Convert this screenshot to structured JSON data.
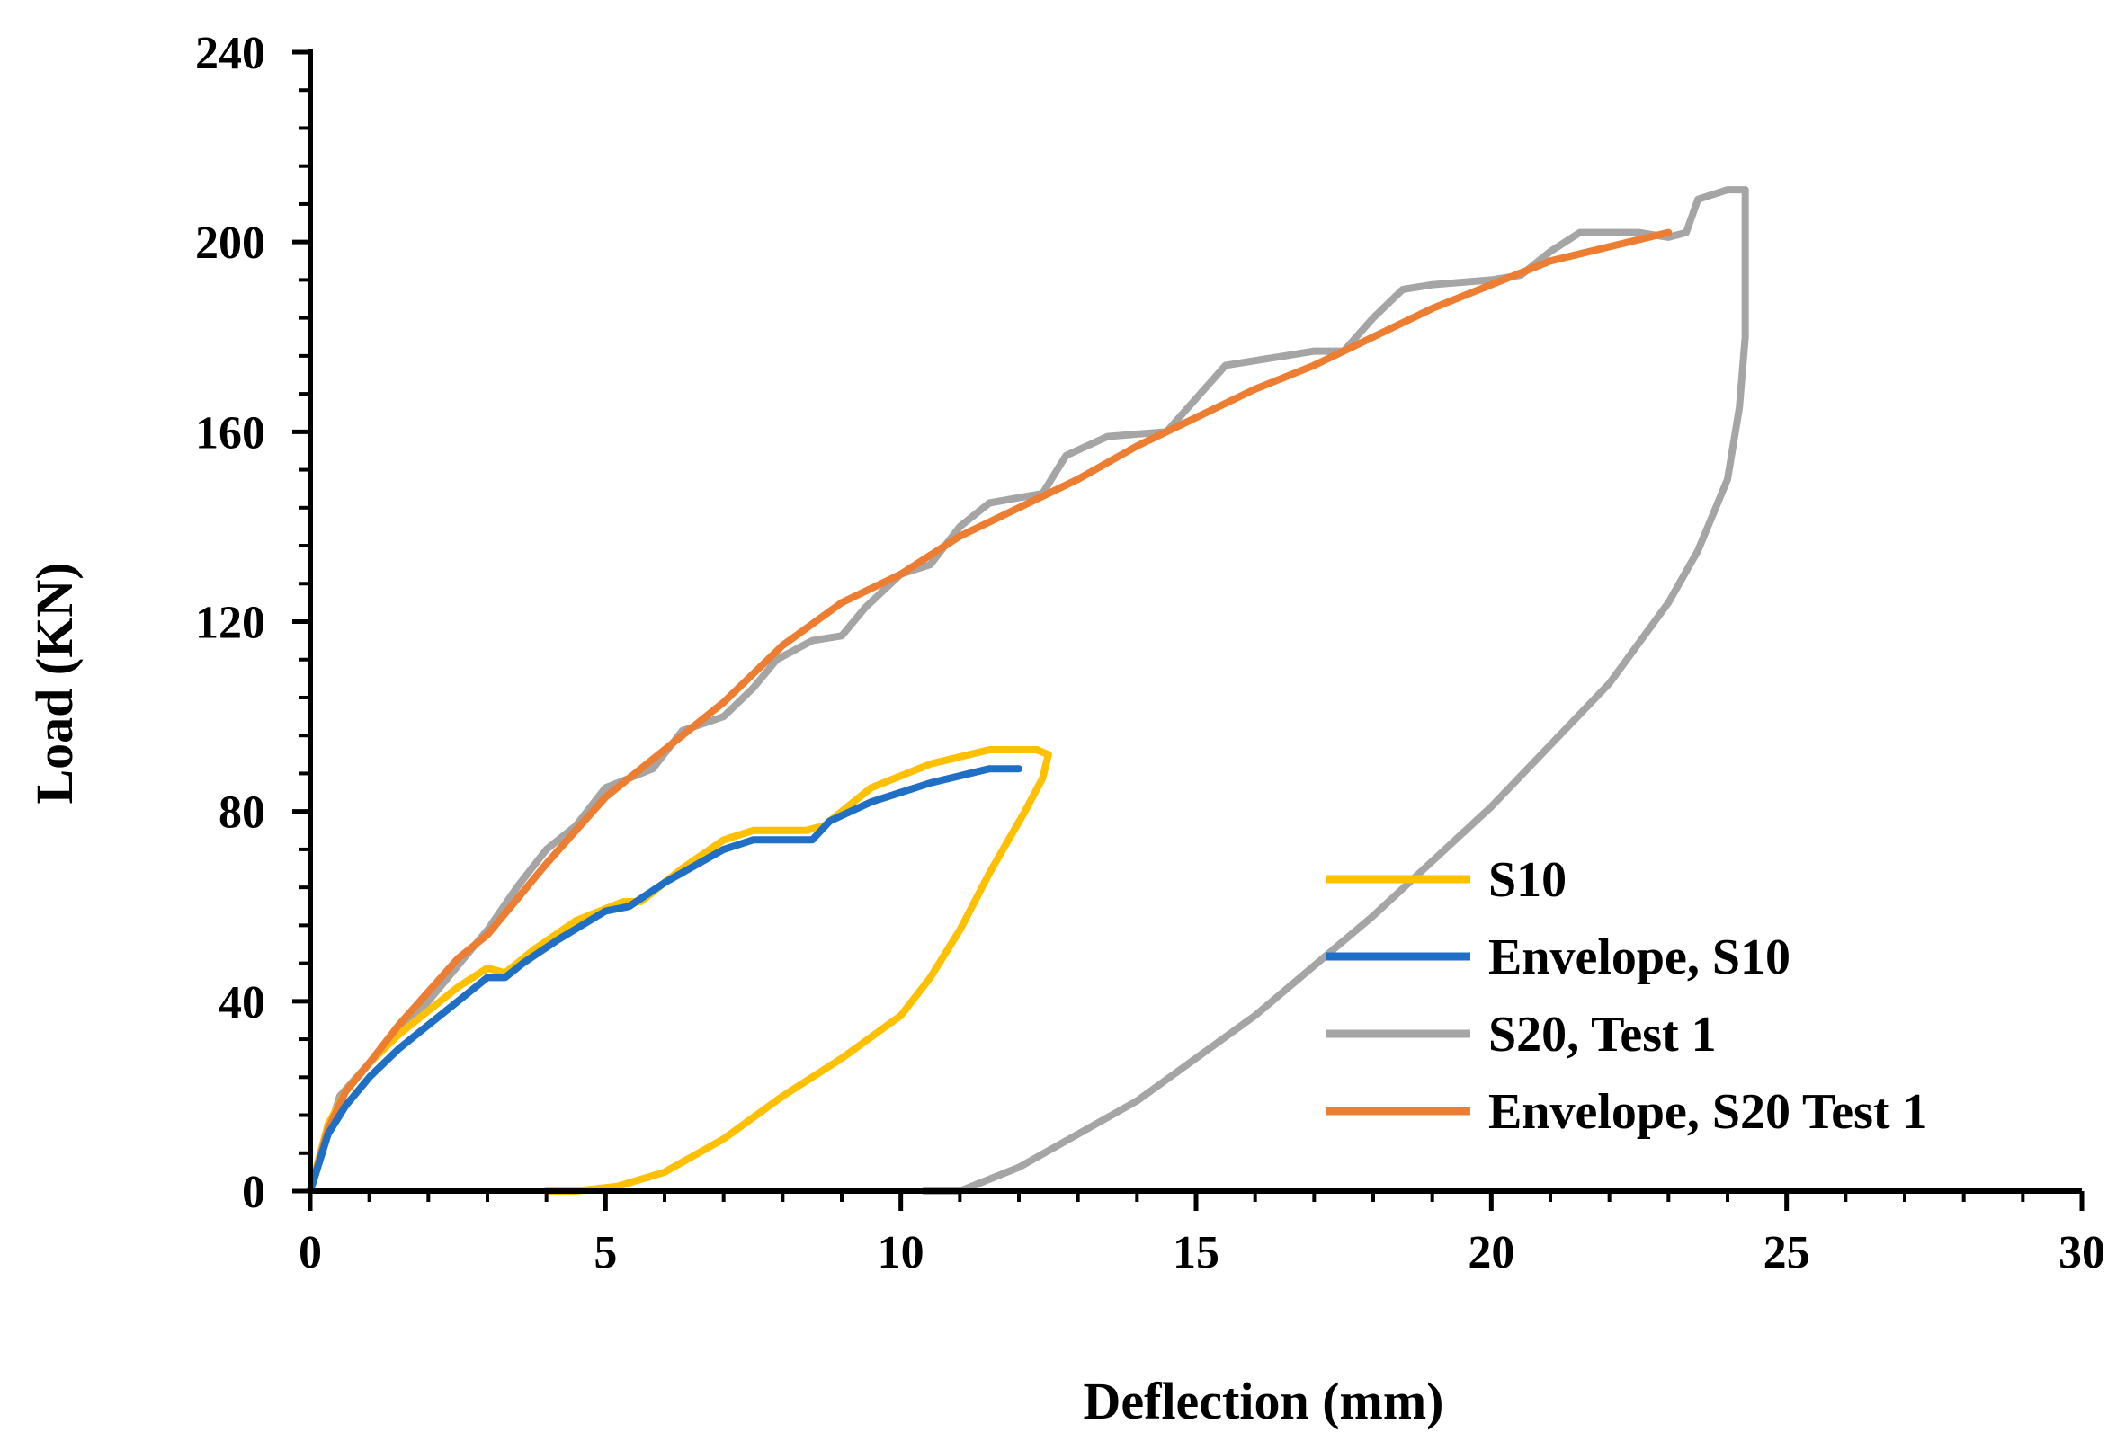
{
  "chart_data": {
    "type": "line",
    "title": "",
    "xlabel": "Deflection (mm)",
    "ylabel": "Load (KN)",
    "xlim": [
      0,
      30
    ],
    "ylim": [
      0,
      240
    ],
    "x_ticks": [
      "0",
      "5",
      "10",
      "15",
      "20",
      "25",
      "30"
    ],
    "y_ticks": [
      "0",
      "40",
      "80",
      "120",
      "160",
      "200",
      "240"
    ],
    "grid": false,
    "legend_position": "bottom-right",
    "series": [
      {
        "name": "S10",
        "color": "#FFC000",
        "points": [
          [
            0,
            0
          ],
          [
            0.3,
            14
          ],
          [
            0.6,
            21
          ],
          [
            1,
            27
          ],
          [
            1.5,
            33
          ],
          [
            2,
            38
          ],
          [
            2.5,
            43
          ],
          [
            3,
            47
          ],
          [
            3.3,
            46
          ],
          [
            3.8,
            51
          ],
          [
            4.5,
            57
          ],
          [
            5.3,
            61
          ],
          [
            5.6,
            61
          ],
          [
            6.3,
            68
          ],
          [
            7,
            74
          ],
          [
            7.5,
            76
          ],
          [
            8,
            76
          ],
          [
            8.4,
            76
          ],
          [
            8.7,
            77
          ],
          [
            9.5,
            85
          ],
          [
            10.5,
            90
          ],
          [
            11.5,
            93
          ],
          [
            12.3,
            93
          ],
          [
            12.5,
            92
          ],
          [
            12.4,
            87
          ],
          [
            12.1,
            80
          ],
          [
            11.5,
            67
          ],
          [
            11,
            55
          ],
          [
            10.5,
            45
          ],
          [
            10,
            37
          ],
          [
            9,
            28
          ],
          [
            8,
            20
          ],
          [
            7,
            11
          ],
          [
            6,
            4
          ],
          [
            5.2,
            1
          ],
          [
            4.5,
            0
          ],
          [
            4,
            0
          ]
        ]
      },
      {
        "name": "Envelope, S10",
        "color": "#1F6FC5",
        "points": [
          [
            0,
            0
          ],
          [
            0.3,
            12
          ],
          [
            0.6,
            18
          ],
          [
            1,
            24
          ],
          [
            1.5,
            30
          ],
          [
            2,
            35
          ],
          [
            2.5,
            40
          ],
          [
            3,
            45
          ],
          [
            3.3,
            45
          ],
          [
            3.6,
            48
          ],
          [
            4.2,
            53
          ],
          [
            5,
            59
          ],
          [
            5.4,
            60
          ],
          [
            6,
            65
          ],
          [
            7,
            72
          ],
          [
            7.5,
            74
          ],
          [
            8,
            74
          ],
          [
            8.5,
            74
          ],
          [
            8.8,
            78
          ],
          [
            9.5,
            82
          ],
          [
            10.5,
            86
          ],
          [
            11.5,
            89
          ],
          [
            12,
            89
          ]
        ]
      },
      {
        "name": "S20, Test 1",
        "color": "#A5A5A5",
        "points": [
          [
            0,
            0
          ],
          [
            0.5,
            20
          ],
          [
            1,
            27
          ],
          [
            2,
            40
          ],
          [
            3,
            55
          ],
          [
            3.5,
            64
          ],
          [
            4,
            72
          ],
          [
            4.5,
            77
          ],
          [
            5,
            85
          ],
          [
            5.8,
            89
          ],
          [
            6.3,
            97
          ],
          [
            7,
            100
          ],
          [
            7.5,
            106
          ],
          [
            7.9,
            112
          ],
          [
            8.5,
            116
          ],
          [
            9,
            117
          ],
          [
            9.4,
            123
          ],
          [
            10,
            130
          ],
          [
            10.5,
            132
          ],
          [
            11,
            140
          ],
          [
            11.5,
            145
          ],
          [
            12.4,
            147
          ],
          [
            12.8,
            155
          ],
          [
            13.5,
            159
          ],
          [
            14.5,
            160
          ],
          [
            15,
            167
          ],
          [
            15.5,
            174
          ],
          [
            16.5,
            176
          ],
          [
            17,
            177
          ],
          [
            17.5,
            177
          ],
          [
            18,
            184
          ],
          [
            18.5,
            190
          ],
          [
            19,
            191
          ],
          [
            20,
            192
          ],
          [
            20.5,
            193
          ],
          [
            21,
            198
          ],
          [
            21.5,
            202
          ],
          [
            22,
            202
          ],
          [
            22.5,
            202
          ],
          [
            23,
            201
          ],
          [
            23.3,
            202
          ],
          [
            23.5,
            209
          ],
          [
            24,
            211
          ],
          [
            24.3,
            211
          ],
          [
            24.3,
            200
          ],
          [
            24.3,
            180
          ],
          [
            24.2,
            165
          ],
          [
            24,
            150
          ],
          [
            23.5,
            135
          ],
          [
            23,
            124
          ],
          [
            22,
            107
          ],
          [
            20,
            81
          ],
          [
            18,
            58
          ],
          [
            16,
            37
          ],
          [
            14,
            19
          ],
          [
            12,
            5
          ],
          [
            11,
            0
          ],
          [
            10.4,
            0
          ]
        ]
      },
      {
        "name": "Envelope, S20 Test 1",
        "color": "#ED7D31",
        "points": [
          [
            0,
            0
          ],
          [
            0.3,
            13
          ],
          [
            0.6,
            21
          ],
          [
            1,
            27
          ],
          [
            1.5,
            35
          ],
          [
            2,
            42
          ],
          [
            2.5,
            49
          ],
          [
            3,
            54
          ],
          [
            4,
            69
          ],
          [
            5,
            83
          ],
          [
            6,
            93
          ],
          [
            7,
            103
          ],
          [
            8,
            115
          ],
          [
            9,
            124
          ],
          [
            10,
            130
          ],
          [
            11,
            138
          ],
          [
            12,
            144
          ],
          [
            13,
            150
          ],
          [
            14,
            157
          ],
          [
            15,
            163
          ],
          [
            16,
            169
          ],
          [
            17,
            174
          ],
          [
            18,
            180
          ],
          [
            19,
            186
          ],
          [
            20,
            191
          ],
          [
            21,
            196
          ],
          [
            22,
            199
          ],
          [
            23,
            202
          ]
        ]
      }
    ]
  }
}
